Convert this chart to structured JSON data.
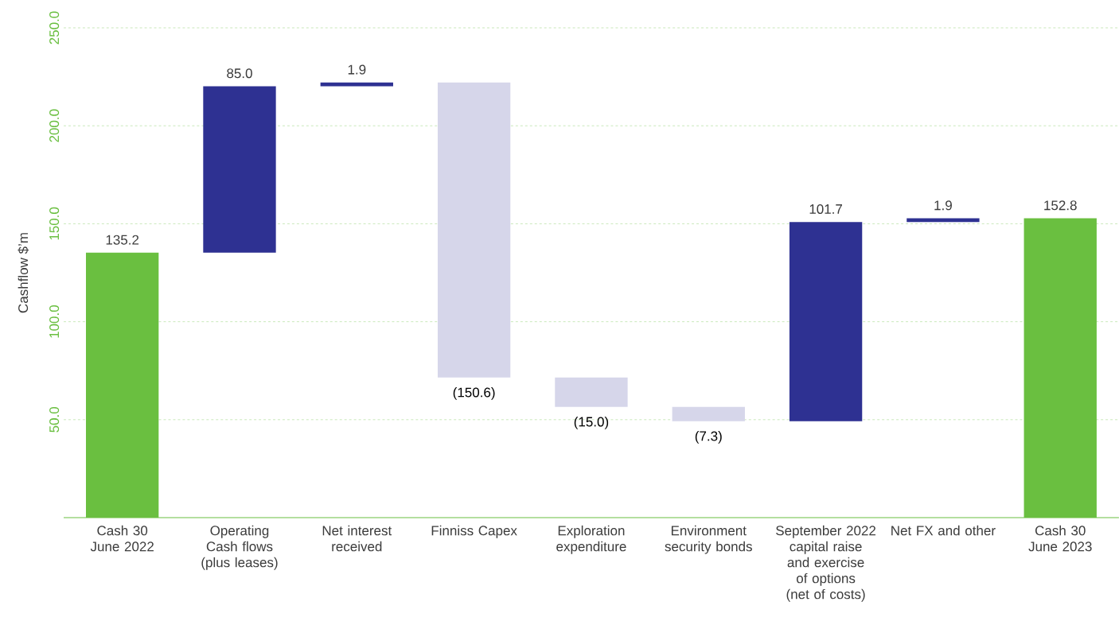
{
  "chart_data": {
    "type": "bar",
    "ylabel": "Cashflow $’m",
    "categories": [
      "Cash 30 June 2022",
      "Operating Cash flows (plus leases)",
      "Net interest received",
      "Finniss Capex",
      "Exploration expenditure",
      "Environment security bonds",
      "September 2022 capital raise and exercise of options (net of costs)",
      "Net FX and other",
      "Cash 30 June 2023"
    ],
    "values": [
      135.2,
      85.0,
      1.9,
      -150.6,
      -15.0,
      -7.3,
      101.7,
      1.9,
      152.8
    ],
    "base": [
      0,
      135.2,
      220.2,
      222.1,
      71.5,
      56.5,
      49.2,
      150.9,
      0
    ],
    "value_labels": [
      "135.2",
      "85.0",
      "1.9",
      "(150.6)",
      "(15.0)",
      "(7.3)",
      "101.7",
      "1.9",
      "152.8"
    ],
    "colors": [
      "#6abf40",
      "#2e3192",
      "#2e3192",
      "#d6d6ea",
      "#d6d6ea",
      "#d6d6ea",
      "#2e3192",
      "#2e3192",
      "#6abf40"
    ],
    "ylim": [
      0,
      250
    ],
    "yticks": [
      {
        "value": 50,
        "label": "50.0"
      },
      {
        "value": 100,
        "label": "100.0"
      },
      {
        "value": 150,
        "label": "150.0"
      },
      {
        "value": 200,
        "label": "200.0"
      },
      {
        "value": 250,
        "label": "250.0"
      }
    ],
    "grid": "y"
  }
}
